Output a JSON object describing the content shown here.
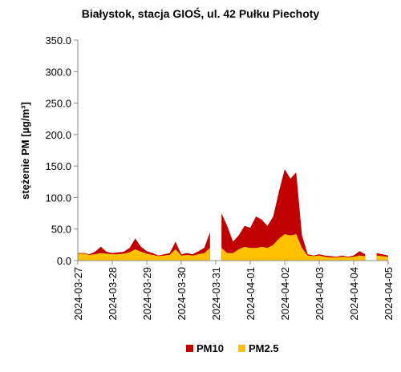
{
  "chart_data": {
    "type": "area",
    "title": "Białystok, stacja GIOŚ, ul. 42 Pułku Piechoty",
    "y_label": "stężenie PM [µg/m³]",
    "categories": [
      "2024-03-27",
      null,
      null,
      null,
      null,
      null,
      "2024-03-28",
      null,
      null,
      null,
      null,
      null,
      "2024-03-29",
      null,
      null,
      null,
      null,
      null,
      "2024-03-30",
      null,
      null,
      null,
      null,
      null,
      "2024-03-31",
      null,
      null,
      null,
      null,
      null,
      "2024-04-01",
      null,
      null,
      null,
      null,
      null,
      "2024-04-02",
      null,
      null,
      null,
      null,
      null,
      "2024-04-03",
      null,
      null,
      null,
      null,
      null,
      "2024-04-04",
      null,
      null,
      null,
      null,
      null,
      "2024-04-05"
    ],
    "series": [
      {
        "name": "PM10",
        "color": "#c00000",
        "values": [
          12,
          12,
          10,
          14,
          22,
          14,
          12,
          13,
          14,
          20,
          35,
          22,
          15,
          12,
          8,
          10,
          12,
          30,
          10,
          12,
          10,
          15,
          20,
          45,
          null,
          75,
          55,
          30,
          40,
          55,
          52,
          70,
          65,
          55,
          70,
          110,
          145,
          130,
          140,
          40,
          10,
          8,
          10,
          8,
          7,
          6,
          8,
          6,
          8,
          15,
          10,
          null,
          12,
          10,
          8
        ]
      },
      {
        "name": "PM2.5",
        "color": "#ffc000",
        "values": [
          11,
          11,
          9,
          10,
          12,
          11,
          10,
          10,
          11,
          13,
          18,
          14,
          11,
          9,
          7,
          8,
          9,
          18,
          8,
          9,
          8,
          10,
          12,
          20,
          null,
          20,
          12,
          12,
          18,
          22,
          20,
          20,
          22,
          20,
          25,
          35,
          42,
          40,
          42,
          20,
          8,
          7,
          8,
          6,
          5,
          5,
          6,
          5,
          6,
          8,
          7,
          null,
          8,
          7,
          6
        ]
      }
    ],
    "ylim": [
      0,
      350
    ],
    "yticks": [
      {
        "value": 0,
        "label": "0.0"
      },
      {
        "value": 50,
        "label": "50.0"
      },
      {
        "value": 100,
        "label": "100.0"
      },
      {
        "value": 150,
        "label": "150.0"
      },
      {
        "value": 200,
        "label": "200.0"
      },
      {
        "value": 250,
        "label": "250.0"
      },
      {
        "value": 300,
        "label": "300.0"
      },
      {
        "value": 350,
        "label": "350.0"
      }
    ],
    "legend": "bottom"
  }
}
